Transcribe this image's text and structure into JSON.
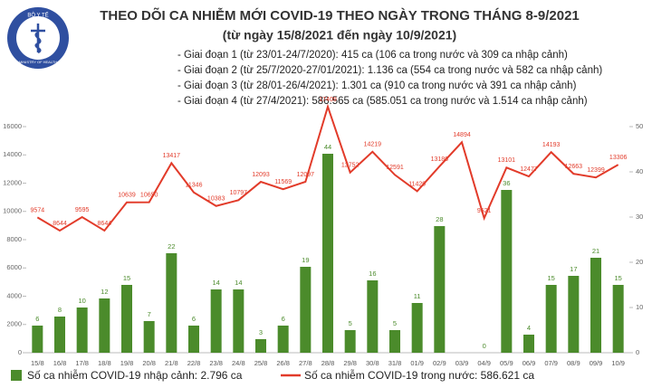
{
  "chart_data": {
    "type": "combo",
    "title": "THEO DÕI CA NHIỄM MỚI COVID-19 THEO NGÀY TRONG THÁNG 8-9/2021",
    "subtitle": "(từ ngày 15/8/2021 đến ngày 10/9/2021)",
    "logo_text": [
      "BỘ Y TẾ",
      "MINISTRY OF HEALTH"
    ],
    "notes": [
      "- Giai đoạn 1 (từ 23/01-24/7/2020): 415 ca (106 ca trong nước và 309 ca nhập cảnh)",
      "- Giai đoạn 2 (từ 25/7/2020-27/01/2021): 1.136 ca (554 ca trong nước và 582 ca nhập cảnh)",
      "- Giai đoạn 3 (từ 28/01-26/4/2021): 1.301 ca (910 ca trong nước và 391 ca nhập cảnh)",
      "- Giai đoạn 4 (từ 27/4/2021): 586.565 ca (585.051 ca trong nước và 1.514 ca nhập cảnh)"
    ],
    "categories": [
      "15/8",
      "16/8",
      "17/8",
      "18/8",
      "19/8",
      "20/8",
      "21/8",
      "22/8",
      "23/8",
      "24/8",
      "25/8",
      "26/8",
      "27/8",
      "28/8",
      "29/8",
      "30/8",
      "31/8",
      "01/9",
      "02/9",
      "03/9",
      "04/9",
      "05/9",
      "06/9",
      "07/9",
      "08/9",
      "09/9",
      "10/9"
    ],
    "series": [
      {
        "name": "Số ca nhiễm COVID-19 nhập cảnh: 2.796 ca",
        "type": "bar",
        "axis": "y2",
        "color": "#4b8b2b",
        "values": [
          6,
          8,
          10,
          12,
          15,
          7,
          22,
          6,
          14,
          14,
          3,
          6,
          19,
          44,
          5,
          16,
          5,
          11,
          28,
          null,
          0,
          36,
          4,
          15,
          17,
          21,
          15
        ]
      },
      {
        "name": "Số ca nhiễm COVID-19 trong nước: 586.621 ca",
        "type": "line",
        "axis": "y",
        "color": "#e23b2a",
        "values": [
          9574,
          8644,
          9595,
          8644,
          10639,
          10650,
          13417,
          11346,
          10383,
          10797,
          12093,
          11569,
          12097,
          17409,
          12752,
          14219,
          12591,
          11429,
          13186,
          14894,
          9521,
          13101,
          12477,
          14193,
          12663,
          12399,
          13306
        ]
      }
    ],
    "ylim": [
      0,
      16000
    ],
    "yticks": [
      0,
      2000,
      4000,
      6000,
      8000,
      10000,
      12000,
      14000,
      16000
    ],
    "y2lim": [
      0,
      50
    ],
    "y2ticks": [
      0,
      10,
      20,
      30,
      40,
      50
    ],
    "grid": false
  }
}
